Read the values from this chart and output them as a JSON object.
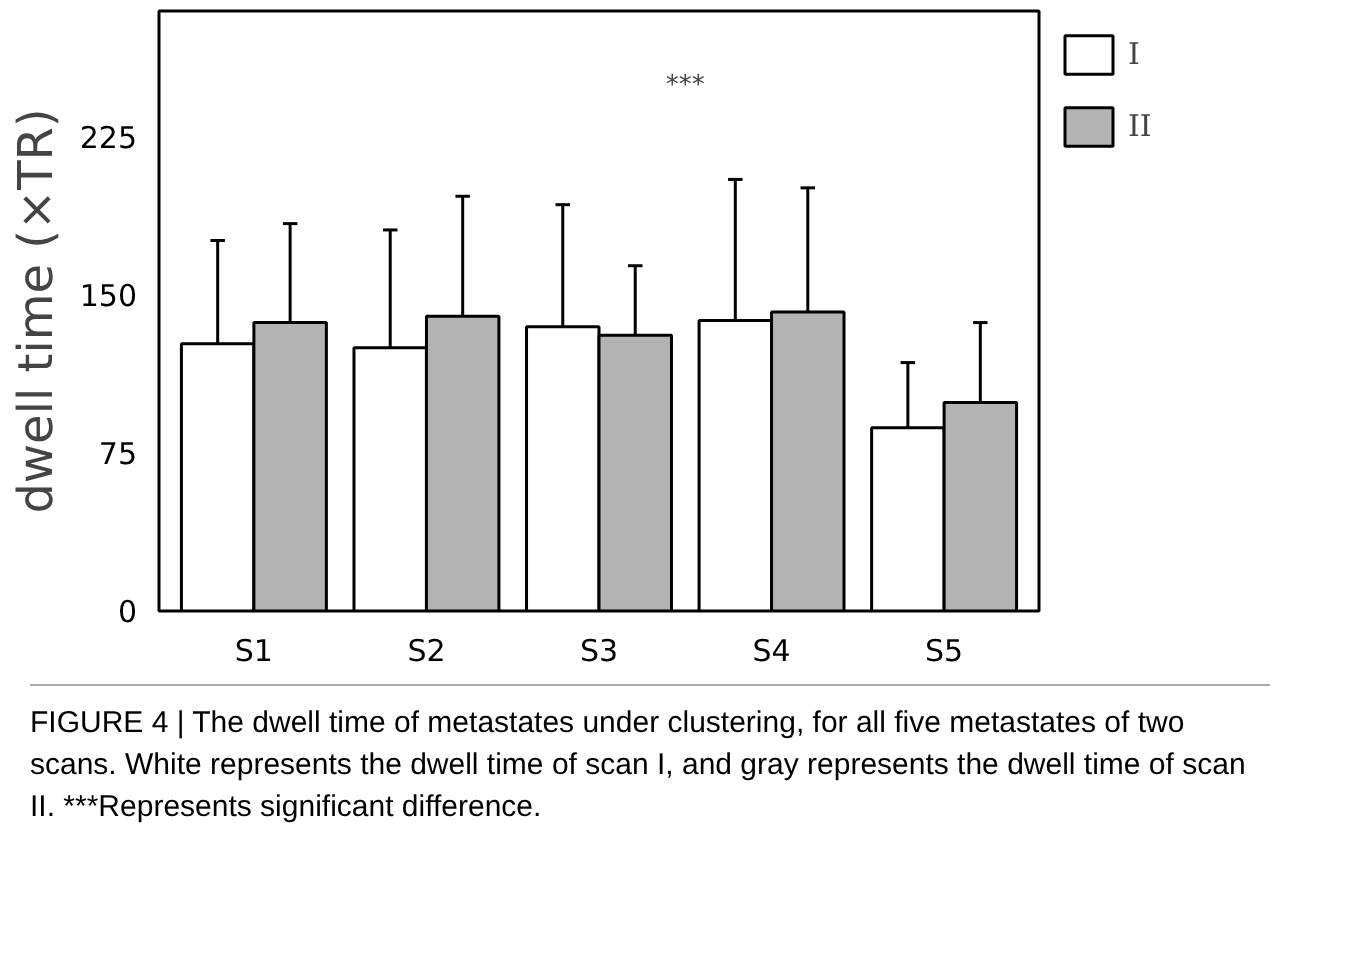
{
  "chart_data": {
    "type": "bar",
    "ylabel": "dwell time (×TR)",
    "categories": [
      "S1",
      "S2",
      "S3",
      "S4",
      "S5"
    ],
    "series": [
      {
        "name": "I",
        "color": "#ffffff",
        "values": [
          127,
          125,
          135,
          138,
          87
        ],
        "errors": [
          [
            127,
            176
          ],
          [
            125,
            181
          ],
          [
            135,
            193
          ],
          [
            138,
            205
          ],
          [
            87,
            118
          ]
        ]
      },
      {
        "name": "II",
        "color": "#b3b3b3",
        "values": [
          137,
          140,
          131,
          142,
          99
        ],
        "errors": [
          [
            137,
            184
          ],
          [
            140,
            197
          ],
          [
            131,
            164
          ],
          [
            142,
            201
          ],
          [
            99,
            137
          ]
        ]
      }
    ],
    "ylim": [
      0,
      285
    ],
    "yticks": [
      0,
      75,
      150,
      225
    ],
    "grid": false,
    "legend": "top right",
    "annotations": [
      "***",
      "FIGURE 4 | The dwell time of metastates under clustering, for all five metastates of two scans. White represents the dwell time of scan I, and gray represents the dwell time of scan II. ***Represents significant difference."
    ]
  }
}
